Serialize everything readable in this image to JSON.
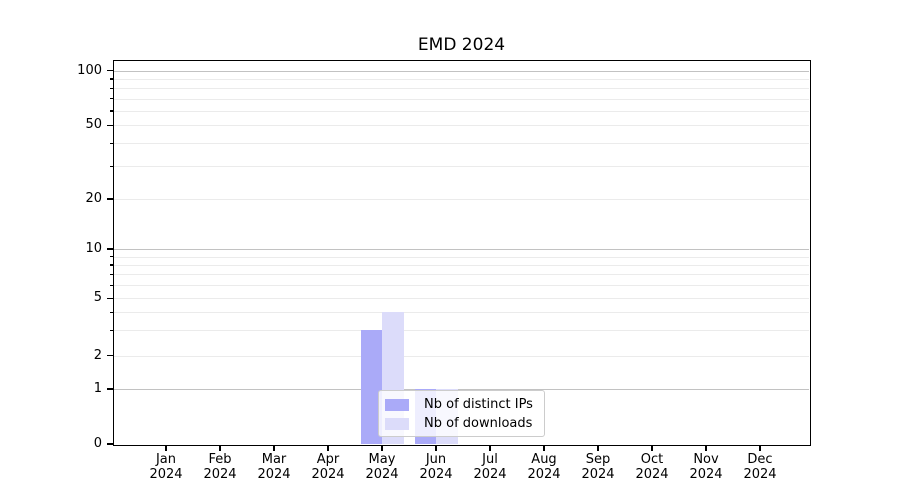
{
  "title": "EMD 2024",
  "chart_data": {
    "type": "bar",
    "title": "EMD 2024",
    "xlabel": "",
    "ylabel": "",
    "yscale": "log-above-1-linear-below-1",
    "ylim": [
      0,
      115
    ],
    "grid": true,
    "legend_position": "lower center (inside axes)",
    "categories": [
      "Jan",
      "Feb",
      "Mar",
      "Apr",
      "May",
      "Jun",
      "Jul",
      "Aug",
      "Sep",
      "Oct",
      "Nov",
      "Dec"
    ],
    "year_label": "2024",
    "series": [
      {
        "name": "Nb of distinct IPs",
        "color": "#aaaaf8",
        "values": [
          0,
          0,
          0,
          0,
          3,
          1,
          0,
          0,
          0,
          0,
          0,
          0
        ]
      },
      {
        "name": "Nb of downloads",
        "color": "#dcdcfa",
        "values": [
          0,
          0,
          0,
          0,
          4,
          1,
          0,
          0,
          0,
          0,
          0,
          0
        ]
      }
    ],
    "y_tick_labels": [
      "0",
      "1",
      "2",
      "5",
      "10",
      "20",
      "50",
      "100"
    ],
    "y_major_gridlines": [
      1,
      10,
      100
    ],
    "y_minor_gridlines": [
      2,
      3,
      4,
      5,
      6,
      7,
      8,
      9,
      20,
      30,
      40,
      50,
      60,
      70,
      80,
      90
    ],
    "y_unlabeled_tick_values": [
      3,
      4,
      6,
      7,
      8,
      9,
      30,
      40,
      60,
      70,
      80,
      90
    ]
  },
  "colors": {
    "bar_distinct_ips": "#aaaaf8",
    "bar_downloads": "#dcdcfa",
    "axis": "#000000",
    "grid_major": "#c2c2c2",
    "grid_minor": "#ebebeb"
  }
}
